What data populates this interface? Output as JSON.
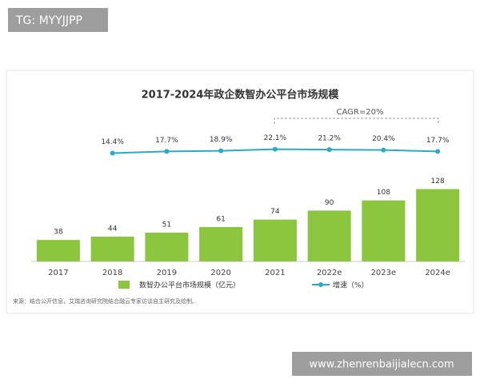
{
  "watermark_top": "TG: MYYJJPP",
  "watermark_bottom": "www.zhenrenbaijialecn.com",
  "chart_data": {
    "type": "bar",
    "title": "2017-2024年政企数智办公平台市场规模",
    "annotation": "CAGR=20%",
    "categories": [
      "2017",
      "2018",
      "2019",
      "2020",
      "2021",
      "2022e",
      "2023e",
      "2024e"
    ],
    "series": [
      {
        "name": "数智办公平台市场规模（亿元）",
        "color": "#8cc63f",
        "type": "bar",
        "values": [
          38,
          44,
          51,
          61,
          74,
          90,
          108,
          128
        ]
      },
      {
        "name": "增速（%）",
        "color": "#2aa9c9",
        "type": "line",
        "axis": "y2",
        "values": [
          null,
          14.4,
          17.7,
          18.9,
          22.1,
          21.2,
          20.4,
          17.7
        ],
        "value_labels": [
          null,
          "14.4%",
          "17.7%",
          "18.9%",
          "22.1%",
          "21.2%",
          "20.4%",
          "17.7%"
        ]
      }
    ],
    "ylim": [
      0,
      140
    ],
    "y2lim": [
      -200,
      80
    ],
    "source": "来源：结合公开信息，艾瑞咨询研究院结合融云专家访谈自主研究及绘制。"
  }
}
